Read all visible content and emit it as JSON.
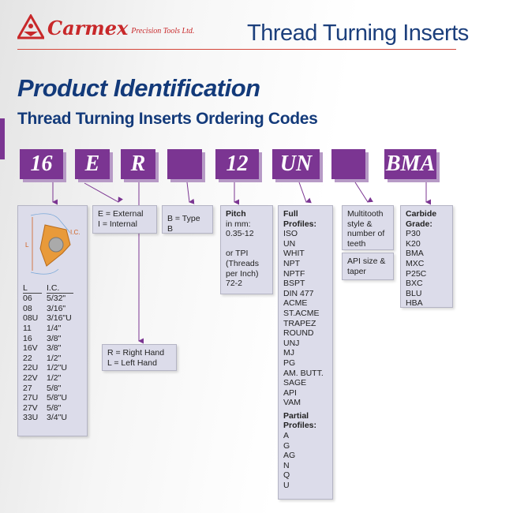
{
  "header": {
    "brand": "Carmex",
    "brand_sub": "Precision Tools Ltd.",
    "title": "Thread Turning Inserts"
  },
  "page_title": "Product Identification",
  "subtitle": "Thread Turning Inserts Ordering Codes",
  "colors": {
    "accent": "#7b3592",
    "title": "#133a7a",
    "brand": "#c8282a"
  },
  "codes": [
    "16",
    "E",
    "R",
    "",
    "12",
    "UN",
    "",
    "BMA"
  ],
  "size_panel": {
    "diagram_label_l": "L",
    "diagram_label_ic": "I.C.",
    "col_l": "L",
    "col_ic": "I.C.",
    "rows": [
      [
        "06",
        "5/32\""
      ],
      [
        "08",
        "3/16\""
      ],
      [
        "08U",
        "3/16\"U"
      ],
      [
        "11",
        "1/4\""
      ],
      [
        "16",
        "3/8\""
      ],
      [
        "16V",
        "3/8\""
      ],
      [
        "22",
        "1/2\""
      ],
      [
        "22U",
        "1/2\"U"
      ],
      [
        "22V",
        "1/2\""
      ],
      [
        "27",
        "5/8\""
      ],
      [
        "27U",
        "5/8\"U"
      ],
      [
        "27V",
        "5/8\""
      ],
      [
        "33U",
        "3/4\"U"
      ]
    ]
  },
  "type_panel": [
    "E = External",
    "I = Internal"
  ],
  "typeb_panel": "B = Type B",
  "hand_panel": [
    "R = Right Hand",
    "L = Left Hand"
  ],
  "pitch_panel": {
    "title": "Pitch",
    "lines": [
      "in mm:",
      "0.35-12",
      "",
      "or TPI",
      "(Threads",
      "per Inch)",
      "72-2"
    ]
  },
  "profile_panel": {
    "full_title": "Full Profiles:",
    "full": [
      "ISO",
      "UN",
      "WHIT",
      "NPT",
      "NPTF",
      "BSPT",
      "DIN 477",
      "ACME",
      "ST.ACME",
      "TRAPEZ",
      "ROUND",
      "UNJ",
      "MJ",
      "PG",
      "AM. BUTT.",
      "SAGE",
      "API",
      "VAM"
    ],
    "partial_title": "Partial Profiles:",
    "partial": [
      "A",
      "G",
      "AG",
      "N",
      "Q",
      "U"
    ]
  },
  "multitooth_panel": "Multitooth style & number of teeth",
  "api_panel": "API size & taper",
  "grade_panel": {
    "title": "Carbide Grade:",
    "items": [
      "P30",
      "K20",
      "BMA",
      "MXC",
      "P25C",
      "BXC",
      "BLU",
      "HBA"
    ]
  }
}
